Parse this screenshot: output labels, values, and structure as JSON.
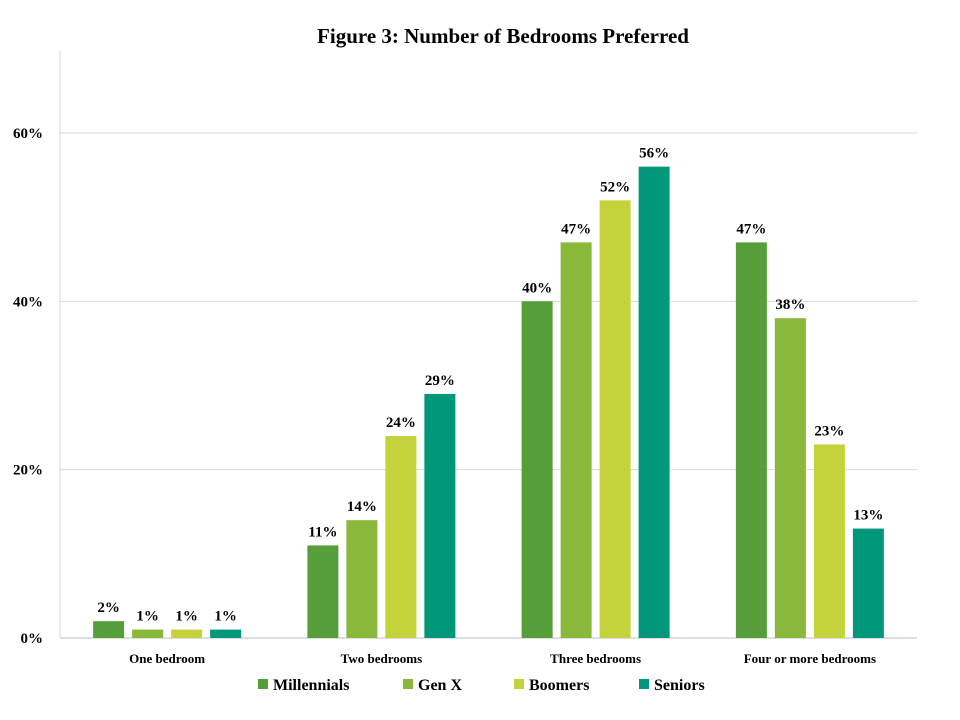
{
  "chart_data": {
    "type": "bar",
    "title": "Figure 3: Number of Bedrooms Preferred",
    "xlabel": "",
    "ylabel": "",
    "categories": [
      "One bedroom",
      "Two bedrooms",
      "Three bedrooms",
      "Four or more bedrooms"
    ],
    "series": [
      {
        "name": "Millennials",
        "values": [
          2,
          11,
          40,
          47
        ],
        "labels": [
          "2%",
          "11%",
          "40%",
          "47%"
        ],
        "color": "#559e3a"
      },
      {
        "name": "Gen X",
        "values": [
          1,
          14,
          47,
          38
        ],
        "labels": [
          "1%",
          "14%",
          "47%",
          "38%"
        ],
        "color": "#8ab83a"
      },
      {
        "name": "Boomers",
        "values": [
          1,
          24,
          52,
          23
        ],
        "labels": [
          "1%",
          "24%",
          "52%",
          "23%"
        ],
        "color": "#c4d23c"
      },
      {
        "name": "Seniors",
        "values": [
          1,
          29,
          56,
          13
        ],
        "labels": [
          "1%",
          "29%",
          "56%",
          "13%"
        ],
        "color": "#00977a"
      }
    ],
    "ylim": [
      0,
      60
    ],
    "yticks": [
      0,
      20,
      40,
      60
    ],
    "ytick_labels": [
      "0%",
      "20%",
      "40%",
      "60%"
    ],
    "grid": true,
    "legend": "bottom"
  }
}
